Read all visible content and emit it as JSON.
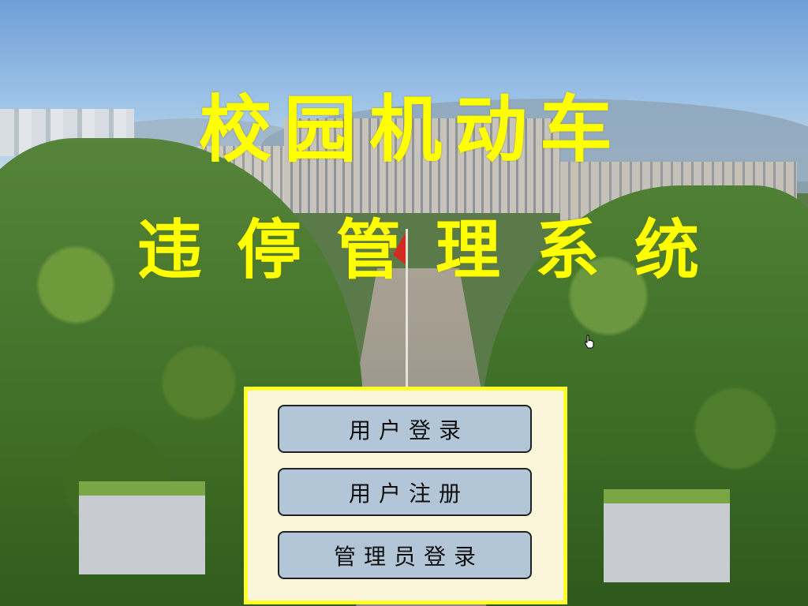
{
  "title": {
    "line1": "校园机动车",
    "line2": "违停管理系统"
  },
  "menu": {
    "user_login": "用户登录",
    "user_register": "用户注册",
    "admin_login": "管理员登录"
  },
  "colors": {
    "title": "#ffff00",
    "panel_border": "#ffff2a",
    "panel_bg": "#fbf6d9",
    "button_bg": "#b2c6d8"
  },
  "icons": {
    "cursor": "hand-pointer-icon"
  }
}
